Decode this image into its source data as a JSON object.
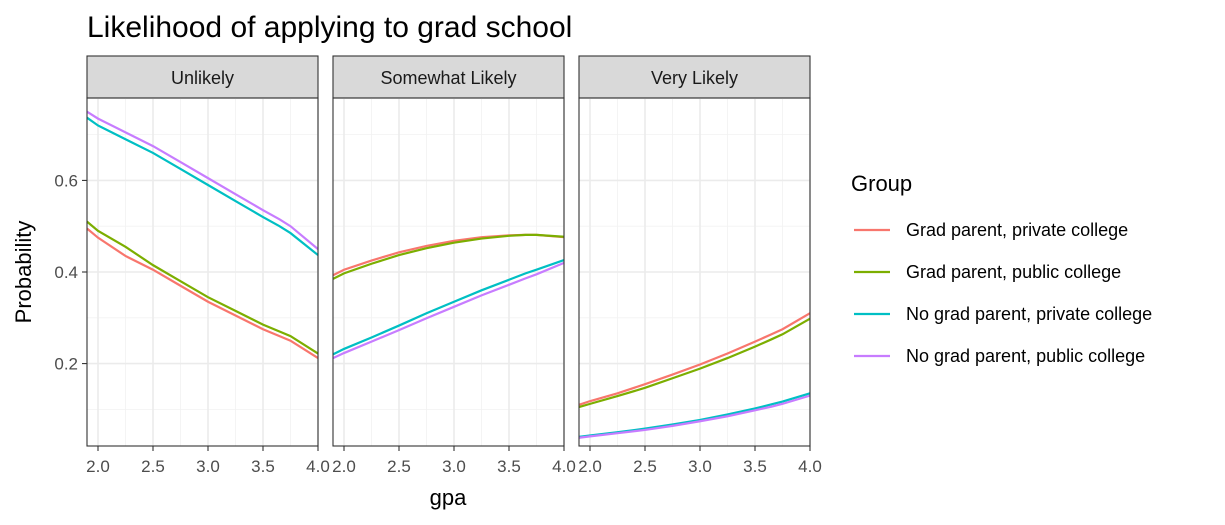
{
  "chart_data": {
    "type": "line",
    "title": "Likelihood of applying to grad school",
    "xlabel": "gpa",
    "ylabel": "Probability",
    "xlim": [
      1.9,
      4.0
    ],
    "ylim": [
      0.02,
      0.78
    ],
    "x_ticks": [
      2.0,
      2.5,
      3.0,
      3.5,
      4.0
    ],
    "x_tick_labels": [
      "2.0",
      "2.5",
      "3.0",
      "3.5",
      "4.0"
    ],
    "y_ticks": [
      0.2,
      0.4,
      0.6
    ],
    "y_tick_labels": [
      "0.2",
      "0.4",
      "0.6"
    ],
    "grid": true,
    "legend": {
      "title": "Group",
      "position": "right",
      "entries": [
        {
          "label": "Grad parent, private college",
          "color": "#F8766D"
        },
        {
          "label": "Grad parent, public college",
          "color": "#7CAE00"
        },
        {
          "label": "No grad parent, private college",
          "color": "#00BFC4"
        },
        {
          "label": "No grad parent, public college",
          "color": "#C77CFF"
        }
      ]
    },
    "x": [
      1.9,
      2.0,
      2.25,
      2.5,
      2.75,
      3.0,
      3.25,
      3.5,
      3.65,
      3.75,
      4.0
    ],
    "facets": [
      {
        "label": "Unlikely",
        "series": [
          {
            "name": "Grad parent, private college",
            "values": [
              0.495,
              0.475,
              0.435,
              0.405,
              0.37,
              0.335,
              0.305,
              0.275,
              0.26,
              0.25,
              0.212
            ]
          },
          {
            "name": "Grad parent, public college",
            "values": [
              0.51,
              0.49,
              0.455,
              0.415,
              0.38,
              0.345,
              0.315,
              0.285,
              0.27,
              0.26,
              0.222
            ]
          },
          {
            "name": "No grad parent, private college",
            "values": [
              0.737,
              0.72,
              0.69,
              0.66,
              0.625,
              0.59,
              0.555,
              0.52,
              0.5,
              0.485,
              0.437
            ]
          },
          {
            "name": "No grad parent, public college",
            "values": [
              0.75,
              0.735,
              0.705,
              0.675,
              0.64,
              0.605,
              0.57,
              0.535,
              0.515,
              0.5,
              0.45
            ]
          }
        ]
      },
      {
        "label": "Somewhat Likely",
        "series": [
          {
            "name": "Grad parent, private college",
            "values": [
              0.393,
              0.405,
              0.425,
              0.443,
              0.457,
              0.468,
              0.476,
              0.48,
              0.481,
              0.481,
              0.476
            ]
          },
          {
            "name": "Grad parent, public college",
            "values": [
              0.385,
              0.397,
              0.418,
              0.437,
              0.452,
              0.464,
              0.473,
              0.479,
              0.481,
              0.481,
              0.477
            ]
          },
          {
            "name": "No grad parent, private college",
            "values": [
              0.22,
              0.232,
              0.257,
              0.283,
              0.31,
              0.335,
              0.36,
              0.383,
              0.397,
              0.405,
              0.426
            ]
          },
          {
            "name": "No grad parent, public college",
            "values": [
              0.212,
              0.223,
              0.248,
              0.273,
              0.299,
              0.324,
              0.349,
              0.372,
              0.386,
              0.395,
              0.42
            ]
          }
        ]
      },
      {
        "label": "Very Likely",
        "series": [
          {
            "name": "Grad parent, private college",
            "values": [
              0.11,
              0.118,
              0.135,
              0.155,
              0.176,
              0.198,
              0.222,
              0.248,
              0.264,
              0.275,
              0.31
            ]
          },
          {
            "name": "Grad parent, public college",
            "values": [
              0.105,
              0.112,
              0.129,
              0.147,
              0.168,
              0.189,
              0.212,
              0.237,
              0.253,
              0.264,
              0.298
            ]
          },
          {
            "name": "No grad parent, private college",
            "values": [
              0.04,
              0.043,
              0.05,
              0.058,
              0.067,
              0.077,
              0.089,
              0.102,
              0.111,
              0.117,
              0.135
            ]
          },
          {
            "name": "No grad parent, public college",
            "values": [
              0.038,
              0.041,
              0.048,
              0.055,
              0.064,
              0.074,
              0.085,
              0.098,
              0.106,
              0.112,
              0.13
            ]
          }
        ]
      }
    ]
  }
}
